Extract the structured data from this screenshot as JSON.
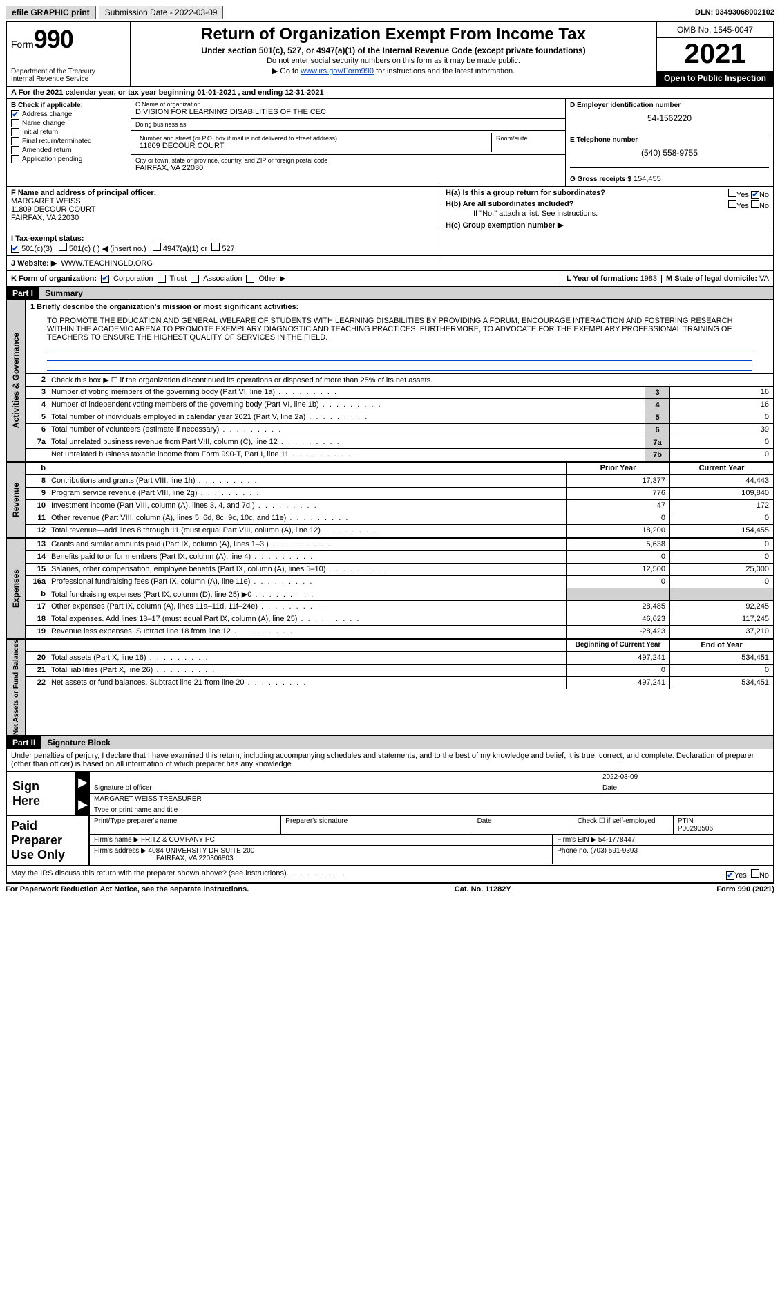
{
  "topbar": {
    "efile": "efile GRAPHIC print",
    "submission": "Submission Date - 2022-03-09",
    "dln": "DLN: 93493068002102"
  },
  "header": {
    "form_prefix": "Form",
    "form_num": "990",
    "title": "Return of Organization Exempt From Income Tax",
    "subtitle": "Under section 501(c), 527, or 4947(a)(1) of the Internal Revenue Code (except private foundations)",
    "note1": "Do not enter social security numbers on this form as it may be made public.",
    "note2_pre": "Go to ",
    "note2_link": "www.irs.gov/Form990",
    "note2_post": " for instructions and the latest information.",
    "dept": "Department of the Treasury",
    "irs": "Internal Revenue Service",
    "omb": "OMB No. 1545-0047",
    "year": "2021",
    "open": "Open to Public Inspection"
  },
  "rowA": "A For the 2021 calendar year, or tax year beginning 01-01-2021    , and ending 12-31-2021",
  "colB": {
    "hdr": "B Check if applicable:",
    "items": [
      {
        "label": "Address change",
        "checked": true
      },
      {
        "label": "Name change",
        "checked": false
      },
      {
        "label": "Initial return",
        "checked": false
      },
      {
        "label": "Final return/terminated",
        "checked": false
      },
      {
        "label": "Amended return",
        "checked": false
      },
      {
        "label": "Application pending",
        "checked": false
      }
    ]
  },
  "colC": {
    "name_lbl": "C Name of organization",
    "name": "DIVISION FOR LEARNING DISABILITIES OF THE CEC",
    "dba_lbl": "Doing business as",
    "dba": "",
    "addr_lbl": "Number and street (or P.O. box if mail is not delivered to street address)",
    "addr": "11809 DECOUR COURT",
    "room_lbl": "Room/suite",
    "city_lbl": "City or town, state or province, country, and ZIP or foreign postal code",
    "city": "FAIRFAX, VA  22030"
  },
  "colD": {
    "ein_lbl": "D Employer identification number",
    "ein": "54-1562220",
    "phone_lbl": "E Telephone number",
    "phone": "(540) 558-9755",
    "gross_lbl": "G Gross receipts $",
    "gross": "154,455"
  },
  "sectionF": {
    "lbl": "F  Name and address of principal officer:",
    "name": "MARGARET WEISS",
    "addr1": "11809 DECOUR COURT",
    "addr2": "FAIRFAX, VA  22030"
  },
  "sectionH": {
    "ha": "H(a)  Is this a group return for subordinates?",
    "hb": "H(b)  Are all subordinates included?",
    "hb_note": "If \"No,\" attach a list. See instructions.",
    "hc": "H(c)  Group exemption number ▶",
    "yes": "Yes",
    "no": "No"
  },
  "rowI": {
    "lbl": "I  Tax-exempt status:",
    "opts": [
      "501(c)(3)",
      "501(c) (  ) ◀ (insert no.)",
      "4947(a)(1) or",
      "527"
    ]
  },
  "rowJ": {
    "lbl": "J  Website: ▶",
    "val": "WWW.TEACHINGLD.ORG"
  },
  "rowK": {
    "lbl": "K Form of organization:",
    "opts": [
      "Corporation",
      "Trust",
      "Association",
      "Other ▶"
    ],
    "l_lbl": "L Year of formation:",
    "l_val": "1983",
    "m_lbl": "M State of legal domicile:",
    "m_val": "VA"
  },
  "part1": {
    "hdr": "Part I",
    "title": "Summary",
    "line1_lbl": "1  Briefly describe the organization's mission or most significant activities:",
    "mission": "TO PROMOTE THE EDUCATION AND GENERAL WELFARE OF STUDENTS WITH LEARNING DISABILITIES BY PROVIDING A FORUM, ENCOURAGE INTERACTION AND FOSTERING RESEARCH WITHIN THE ACADEMIC ARENA TO PROMOTE EXEMPLARY DIAGNOSTIC AND TEACHING PRACTICES. FURTHERMORE, TO ADVOCATE FOR THE EXEMPLARY PROFESSIONAL TRAINING OF TEACHERS TO ENSURE THE HIGHEST QUALITY OF SERVICES IN THE FIELD.",
    "line2": "Check this box ▶ ☐  if the organization discontinued its operations or disposed of more than 25% of its net assets.",
    "gov_lines": [
      {
        "n": "3",
        "d": "Number of voting members of the governing body (Part VI, line 1a)",
        "b": "3",
        "v": "16"
      },
      {
        "n": "4",
        "d": "Number of independent voting members of the governing body (Part VI, line 1b)",
        "b": "4",
        "v": "16"
      },
      {
        "n": "5",
        "d": "Total number of individuals employed in calendar year 2021 (Part V, line 2a)",
        "b": "5",
        "v": "0"
      },
      {
        "n": "6",
        "d": "Total number of volunteers (estimate if necessary)",
        "b": "6",
        "v": "39"
      },
      {
        "n": "7a",
        "d": "Total unrelated business revenue from Part VIII, column (C), line 12",
        "b": "7a",
        "v": "0"
      },
      {
        "n": "",
        "d": "Net unrelated business taxable income from Form 990-T, Part I, line 11",
        "b": "7b",
        "v": "0"
      }
    ],
    "ph_prior": "Prior Year",
    "ph_curr": "Current Year",
    "rev_lines": [
      {
        "n": "8",
        "d": "Contributions and grants (Part VIII, line 1h)",
        "p": "17,377",
        "c": "44,443"
      },
      {
        "n": "9",
        "d": "Program service revenue (Part VIII, line 2g)",
        "p": "776",
        "c": "109,840"
      },
      {
        "n": "10",
        "d": "Investment income (Part VIII, column (A), lines 3, 4, and 7d )",
        "p": "47",
        "c": "172"
      },
      {
        "n": "11",
        "d": "Other revenue (Part VIII, column (A), lines 5, 6d, 8c, 9c, 10c, and 11e)",
        "p": "0",
        "c": "0"
      },
      {
        "n": "12",
        "d": "Total revenue—add lines 8 through 11 (must equal Part VIII, column (A), line 12)",
        "p": "18,200",
        "c": "154,455"
      }
    ],
    "exp_lines": [
      {
        "n": "13",
        "d": "Grants and similar amounts paid (Part IX, column (A), lines 1–3 )",
        "p": "5,638",
        "c": "0"
      },
      {
        "n": "14",
        "d": "Benefits paid to or for members (Part IX, column (A), line 4)",
        "p": "0",
        "c": "0"
      },
      {
        "n": "15",
        "d": "Salaries, other compensation, employee benefits (Part IX, column (A), lines 5–10)",
        "p": "12,500",
        "c": "25,000"
      },
      {
        "n": "16a",
        "d": "Professional fundraising fees (Part IX, column (A), line 11e)",
        "p": "0",
        "c": "0"
      },
      {
        "n": "b",
        "d": "Total fundraising expenses (Part IX, column (D), line 25) ▶0",
        "p": "",
        "c": "",
        "shade": true
      },
      {
        "n": "17",
        "d": "Other expenses (Part IX, column (A), lines 11a–11d, 11f–24e)",
        "p": "28,485",
        "c": "92,245"
      },
      {
        "n": "18",
        "d": "Total expenses. Add lines 13–17 (must equal Part IX, column (A), line 25)",
        "p": "46,623",
        "c": "117,245"
      },
      {
        "n": "19",
        "d": "Revenue less expenses. Subtract line 18 from line 12",
        "p": "-28,423",
        "c": "37,210"
      }
    ],
    "na_hdr_beg": "Beginning of Current Year",
    "na_hdr_end": "End of Year",
    "na_lines": [
      {
        "n": "20",
        "d": "Total assets (Part X, line 16)",
        "p": "497,241",
        "c": "534,451"
      },
      {
        "n": "21",
        "d": "Total liabilities (Part X, line 26)",
        "p": "0",
        "c": "0"
      },
      {
        "n": "22",
        "d": "Net assets or fund balances. Subtract line 21 from line 20",
        "p": "497,241",
        "c": "534,451"
      }
    ],
    "vtab_gov": "Activities & Governance",
    "vtab_rev": "Revenue",
    "vtab_exp": "Expenses",
    "vtab_na": "Net Assets or Fund Balances"
  },
  "part2": {
    "hdr": "Part II",
    "title": "Signature Block",
    "decl": "Under penalties of perjury, I declare that I have examined this return, including accompanying schedules and statements, and to the best of my knowledge and belief, it is true, correct, and complete. Declaration of preparer (other than officer) is based on all information of which preparer has any knowledge.",
    "sign_here": "Sign Here",
    "sig_officer": "Signature of officer",
    "date": "Date",
    "sig_date": "2022-03-09",
    "name_title": "MARGARET WEISS  TREASURER",
    "name_title_lbl": "Type or print name and title",
    "paid": "Paid Preparer Use Only",
    "prep_name": "Print/Type preparer's name",
    "prep_sig": "Preparer's signature",
    "prep_date": "Date",
    "check_self": "Check ☐ if self-employed",
    "ptin_lbl": "PTIN",
    "ptin": "P00293506",
    "firm_name_lbl": "Firm's name      ▶",
    "firm_name": "FRITZ & COMPANY PC",
    "firm_ein_lbl": "Firm's EIN ▶",
    "firm_ein": "54-1778447",
    "firm_addr_lbl": "Firm's address ▶",
    "firm_addr1": "4084 UNIVERSITY DR SUITE 200",
    "firm_addr2": "FAIRFAX, VA  220306803",
    "phone_lbl": "Phone no.",
    "phone": "(703) 591-9393",
    "discuss": "May the IRS discuss this return with the preparer shown above? (see instructions)",
    "yes": "Yes",
    "no": "No"
  },
  "footer": {
    "pra": "For Paperwork Reduction Act Notice, see the separate instructions.",
    "cat": "Cat. No. 11282Y",
    "form": "Form 990 (2021)"
  }
}
